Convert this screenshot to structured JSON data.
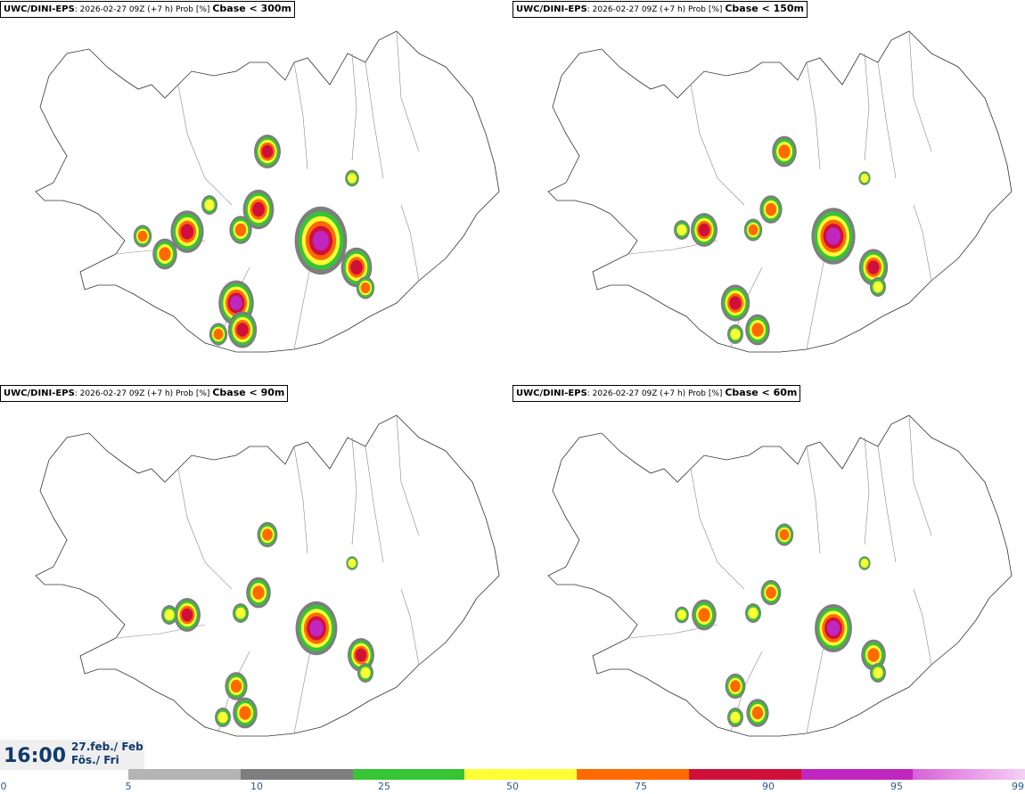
{
  "panels": [
    {
      "model": "UWC/DINI-EPS",
      "info": ": 2026-02-27 09Z (+7 h) Prob [%]",
      "threshold": "Cbase < 300m"
    },
    {
      "model": "UWC/DINI-EPS",
      "info": ": 2026-02-27 09Z (+7 h) Prob [%]",
      "threshold": "Cbase < 150m"
    },
    {
      "model": "UWC/DINI-EPS",
      "info": ": 2026-02-27 09Z (+7 h) Prob [%]",
      "threshold": "Cbase < 90m"
    },
    {
      "model": "UWC/DINI-EPS",
      "info": ": 2026-02-27 09Z (+7 h) Prob [%]",
      "threshold": "Cbase < 60m"
    }
  ],
  "valid_time": {
    "time": "16:00",
    "date": "27.feb./ Feb",
    "day": "Fös./ Fri"
  },
  "colorbar": {
    "ticks": [
      "0",
      "5",
      "10",
      "25",
      "50",
      "75",
      "90",
      "95",
      "99"
    ],
    "colors": [
      "#b4b4b4",
      "#7e7e7e",
      "#35c535",
      "#ffff33",
      "#ff6a00",
      "#d0103a",
      "#c026c0",
      "#f3b8f3"
    ]
  }
}
